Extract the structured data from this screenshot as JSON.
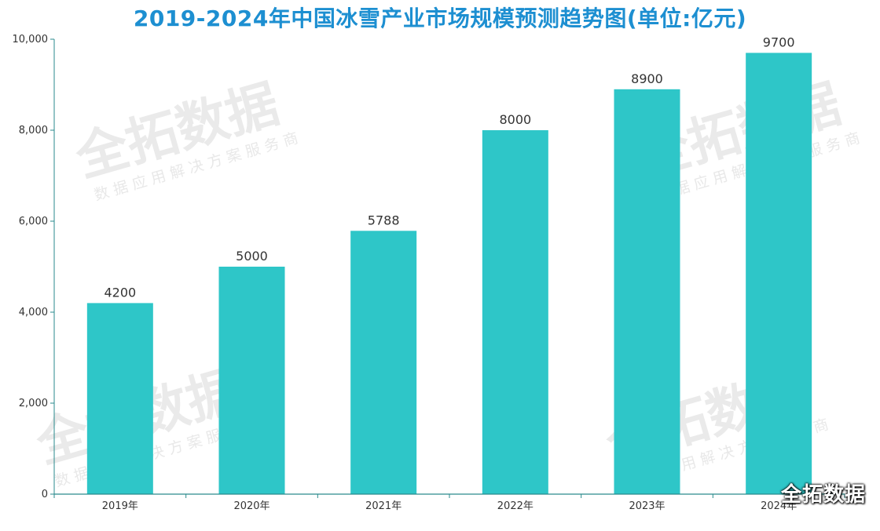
{
  "chart_data": {
    "type": "bar",
    "title": "2019-2024年中国冰雪产业市场规模预测趋势图(单位:亿元)",
    "categories": [
      "2019年",
      "2020年",
      "2021年",
      "2022年",
      "2023年",
      "2024年"
    ],
    "values": [
      4200,
      5000,
      5788,
      8000,
      8900,
      9700
    ],
    "ylim": [
      0,
      10000
    ],
    "yticks": [
      "0",
      "2,000",
      "4,000",
      "6,000",
      "8,000",
      "10,000"
    ],
    "ytick_values": [
      0,
      2000,
      4000,
      6000,
      8000,
      10000
    ],
    "xlabel": "",
    "ylabel": "",
    "grid": false,
    "bar_color": "#2ec6c8",
    "axis_color": "#2a8a8c"
  },
  "watermark": {
    "brand": "全拓数据",
    "tagline": "数据应用解决方案服务商"
  },
  "corner_logo": "全拓数据"
}
